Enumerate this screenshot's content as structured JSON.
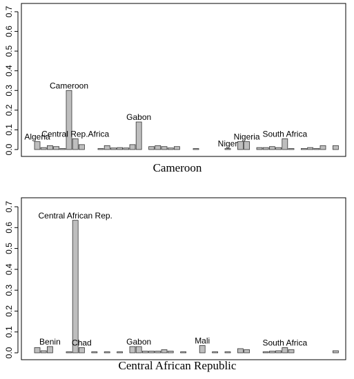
{
  "chart_data": [
    {
      "type": "bar",
      "xlabel": "Cameroon",
      "color": "#bebebe",
      "categories": [
        "Algeria",
        null,
        null,
        null,
        null,
        "Cameroon",
        "Central Rep.Africa",
        null,
        null,
        null,
        null,
        null,
        null,
        null,
        null,
        null,
        "Gabon",
        null,
        null,
        null,
        null,
        null,
        null,
        null,
        null,
        null,
        null,
        null,
        null,
        null,
        "Niger",
        null,
        null,
        "Nigeria",
        null,
        null,
        null,
        null,
        null,
        "South Africa",
        null,
        null,
        null,
        null,
        null,
        null,
        null,
        null
      ],
      "values": [
        0.04,
        0.01,
        0.02,
        0.015,
        0.005,
        0.3,
        0.055,
        0.025,
        0,
        0,
        0.005,
        0.02,
        0.008,
        0.01,
        0.008,
        0.025,
        0.14,
        0,
        0.015,
        0.02,
        0.015,
        0.008,
        0.015,
        0,
        0,
        0.005,
        0,
        0,
        0,
        0,
        0.005,
        0,
        0.04,
        0.04,
        0,
        0.01,
        0.01,
        0.015,
        0.01,
        0.055,
        0.005,
        0,
        0.005,
        0.01,
        0.005,
        0.02,
        0,
        0.02
      ],
      "ylim": [
        -0.035,
        0.742
      ],
      "yticks": [
        {
          "value": 0,
          "label": "0.0"
        },
        0.1,
        0.2,
        0.3,
        0.4,
        0.5,
        0.6,
        0.7
      ]
    },
    {
      "type": "bar",
      "xlabel": "Central African Republic",
      "color": "#bebebe",
      "categories": [
        null,
        null,
        "Benin",
        null,
        null,
        null,
        "Central African Rep.",
        "Chad",
        null,
        null,
        null,
        null,
        null,
        null,
        null,
        null,
        "Gabon",
        null,
        null,
        null,
        null,
        null,
        null,
        null,
        null,
        null,
        "Mali",
        null,
        null,
        null,
        null,
        null,
        null,
        null,
        null,
        null,
        null,
        null,
        null,
        "South Africa",
        null,
        null,
        null,
        null,
        null,
        null,
        null,
        null
      ],
      "values": [
        0.025,
        0.01,
        0.03,
        0,
        0,
        0.005,
        0.635,
        0.025,
        0,
        0.005,
        0,
        0.005,
        0,
        0.005,
        0,
        0.03,
        0.03,
        0.008,
        0.008,
        0.008,
        0.015,
        0.008,
        0,
        0.005,
        0,
        0,
        0.035,
        0,
        0.005,
        0,
        0.005,
        0,
        0.02,
        0.015,
        0,
        0,
        0.005,
        0.008,
        0.01,
        0.025,
        0.015,
        0,
        0,
        0,
        0,
        0,
        0,
        0.01
      ],
      "ylim": [
        -0.033,
        0.743
      ],
      "yticks": [
        {
          "value": 0,
          "label": "0.0"
        },
        0.1,
        0.2,
        0.3,
        0.4,
        0.5,
        0.6,
        0.7
      ]
    }
  ]
}
